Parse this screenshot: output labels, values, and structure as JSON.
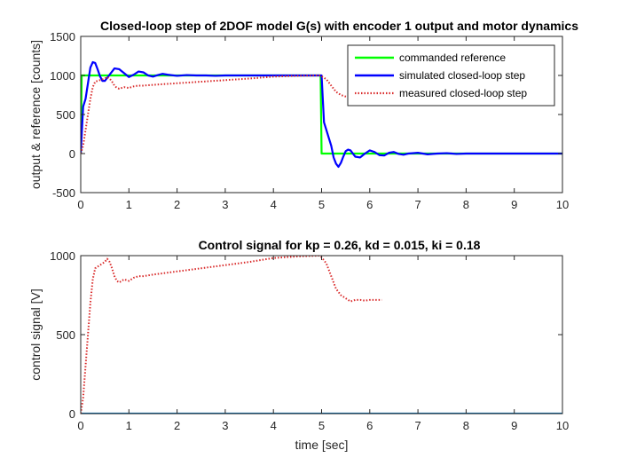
{
  "chart_data": [
    {
      "type": "line",
      "title": "Closed-loop step of 2DOF model G(s) with encoder 1 output and motor dynamics",
      "xlabel": "",
      "ylabel": "output & reference [counts]",
      "xlim": [
        0,
        10
      ],
      "ylim": [
        -500,
        1500
      ],
      "xticks": [
        "0",
        "1",
        "2",
        "3",
        "4",
        "5",
        "6",
        "7",
        "8",
        "9",
        "10"
      ],
      "yticks": [
        "-500",
        "0",
        "500",
        "1000",
        "1500"
      ],
      "xtick_values": [
        0,
        1,
        2,
        3,
        4,
        5,
        6,
        7,
        8,
        9,
        10
      ],
      "ytick_values": [
        -500,
        0,
        500,
        1000,
        1500
      ],
      "grid": false,
      "legend_position": "top-right",
      "series": [
        {
          "name": "commanded reference",
          "color": "#00ff00",
          "style": "solid",
          "x": [
            0,
            0.02,
            4.98,
            5.0,
            10
          ],
          "y": [
            0,
            1000,
            1000,
            0,
            0
          ]
        },
        {
          "name": "simulated closed-loop step",
          "color": "#0000ff",
          "style": "solid",
          "x": [
            0,
            0.05,
            0.1,
            0.15,
            0.2,
            0.25,
            0.3,
            0.35,
            0.4,
            0.45,
            0.5,
            0.55,
            0.6,
            0.7,
            0.8,
            0.9,
            1.0,
            1.1,
            1.2,
            1.3,
            1.4,
            1.5,
            1.6,
            1.7,
            1.8,
            2.0,
            2.2,
            2.4,
            2.6,
            2.8,
            3.0,
            3.5,
            4.0,
            4.5,
            4.99,
            5.0,
            5.05,
            5.1,
            5.15,
            5.2,
            5.25,
            5.3,
            5.35,
            5.4,
            5.45,
            5.5,
            5.55,
            5.6,
            5.7,
            5.8,
            5.9,
            6.0,
            6.1,
            6.2,
            6.3,
            6.4,
            6.5,
            6.6,
            6.7,
            6.8,
            7.0,
            7.2,
            7.4,
            7.6,
            7.8,
            8.0,
            8.5,
            9.0,
            9.5,
            10.0
          ],
          "y": [
            0,
            600,
            700,
            900,
            1100,
            1170,
            1160,
            1080,
            990,
            930,
            930,
            970,
            1010,
            1090,
            1080,
            1030,
            980,
            1010,
            1050,
            1040,
            1000,
            985,
            1005,
            1020,
            1010,
            995,
            1005,
            1000,
            1000,
            995,
            1000,
            1000,
            1000,
            1000,
            1000,
            1000,
            400,
            300,
            200,
            100,
            -50,
            -130,
            -170,
            -120,
            -40,
            30,
            50,
            40,
            -40,
            -50,
            0,
            40,
            20,
            -20,
            -25,
            10,
            20,
            -5,
            -15,
            0,
            10,
            -10,
            0,
            5,
            -5,
            0,
            0,
            0,
            0,
            0
          ]
        },
        {
          "name": "measured closed-loop step",
          "color": "#d92a2a",
          "style": "dotted",
          "x": [
            0,
            0.05,
            0.1,
            0.15,
            0.2,
            0.25,
            0.3,
            0.35,
            0.4,
            0.5,
            0.55,
            0.6,
            0.65,
            0.7,
            0.75,
            0.8,
            0.85,
            0.9,
            1.0,
            1.1,
            1.2,
            1.3,
            1.5,
            2.0,
            2.5,
            3.0,
            3.5,
            4.0,
            4.5,
            4.95,
            5.0,
            5.1,
            5.2,
            5.3,
            5.4,
            5.5,
            5.6,
            5.7,
            5.8,
            5.9,
            6.0,
            6.1,
            6.25
          ],
          "y": [
            0,
            100,
            300,
            500,
            700,
            850,
            920,
            930,
            940,
            960,
            980,
            960,
            920,
            870,
            840,
            830,
            840,
            850,
            840,
            860,
            870,
            870,
            880,
            900,
            920,
            940,
            960,
            985,
            995,
            1000,
            990,
            950,
            870,
            790,
            750,
            730,
            710,
            720,
            720,
            715,
            720,
            720,
            720
          ]
        }
      ]
    },
    {
      "type": "line",
      "title": "Control signal for kp = 0.26, kd = 0.015, ki = 0.18",
      "xlabel": "time [sec]",
      "ylabel": "control signal [V]",
      "xlim": [
        0,
        10
      ],
      "ylim": [
        0,
        1000
      ],
      "xticks": [
        "0",
        "1",
        "2",
        "3",
        "4",
        "5",
        "6",
        "7",
        "8",
        "9",
        "10"
      ],
      "yticks": [
        "0",
        "500",
        "1000"
      ],
      "xtick_values": [
        0,
        1,
        2,
        3,
        4,
        5,
        6,
        7,
        8,
        9,
        10
      ],
      "ytick_values": [
        0,
        500,
        1000
      ],
      "grid": false,
      "series": [
        {
          "color": "#0072bd",
          "style": "solid",
          "x": [
            0,
            10
          ],
          "y": [
            0,
            0
          ]
        },
        {
          "color": "#d92a2a",
          "style": "dotted",
          "x": [
            0,
            0.05,
            0.1,
            0.15,
            0.2,
            0.25,
            0.3,
            0.35,
            0.4,
            0.5,
            0.55,
            0.6,
            0.65,
            0.7,
            0.75,
            0.8,
            0.85,
            0.9,
            1.0,
            1.1,
            1.2,
            1.3,
            1.5,
            2.0,
            2.5,
            3.0,
            3.5,
            4.0,
            4.5,
            4.95,
            5.0,
            5.1,
            5.2,
            5.3,
            5.4,
            5.5,
            5.6,
            5.7,
            5.8,
            5.9,
            6.0,
            6.1,
            6.25
          ],
          "y": [
            0,
            100,
            300,
            500,
            700,
            850,
            920,
            930,
            940,
            960,
            980,
            960,
            920,
            870,
            840,
            830,
            840,
            850,
            840,
            860,
            870,
            870,
            880,
            900,
            920,
            940,
            960,
            985,
            995,
            1000,
            990,
            950,
            870,
            790,
            750,
            730,
            710,
            720,
            720,
            715,
            720,
            720,
            720
          ]
        }
      ]
    }
  ]
}
